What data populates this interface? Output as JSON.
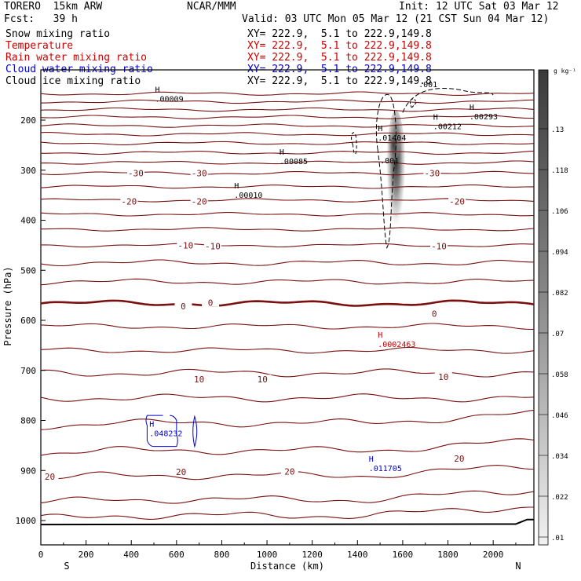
{
  "header": {
    "model": "TORERO  15km ARW",
    "org": "NCAR/MMM",
    "init": "Init: 12 UTC Sat 03 Mar 12",
    "fcst": "Fcst:   39 h",
    "valid": "Valid: 03 UTC Mon 05 Mar 12 (21 CST Sun 04 Mar 12)",
    "fields": [
      {
        "name": "Snow mixing ratio",
        "color": "#000000",
        "xy": "XY= 222.9,  5.1 to 222.9,149.8"
      },
      {
        "name": "Temperature",
        "color": "#cc0000",
        "xy": "XY= 222.9,  5.1 to 222.9,149.8"
      },
      {
        "name": "Rain water mixing ratio",
        "color": "#cc0000",
        "xy": "XY= 222.9,  5.1 to 222.9,149.8"
      },
      {
        "name": "Cloud water mixing ratio",
        "color": "#0000cc",
        "xy": "XY= 222.9,  5.1 to 222.9,149.8"
      },
      {
        "name": "Cloud ice mixing ratio",
        "color": "#000000",
        "xy": "XY= 222.9,  5.1 to 222.9,149.8"
      }
    ]
  },
  "chart_data": {
    "type": "cross-section",
    "xlabel": "Distance (km)",
    "ylabel": "Pressure (hPa)",
    "xlim": [
      0,
      2180
    ],
    "ylim": [
      1050,
      130
    ],
    "xticks": [
      0,
      200,
      400,
      600,
      800,
      1000,
      1200,
      1400,
      1600,
      1800,
      2000
    ],
    "yticks": [
      200,
      300,
      400,
      500,
      600,
      700,
      800,
      900,
      1000
    ],
    "endpoints": {
      "left": "S",
      "right": "N"
    },
    "temperature_isotherms": [
      {
        "p": 147
      },
      {
        "p": 163
      },
      {
        "p": 179
      },
      {
        "p": 194
      },
      {
        "p": 211
      },
      {
        "p": 228
      },
      {
        "p": 246
      },
      {
        "p": 265
      },
      {
        "p": 285
      },
      {
        "p": 306,
        "label": "-30"
      },
      {
        "p": 333
      },
      {
        "p": 360,
        "label": "-20"
      },
      {
        "p": 388
      },
      {
        "p": 418
      },
      {
        "p": 450,
        "label": "-10"
      },
      {
        "p": 485
      },
      {
        "p": 523
      },
      {
        "p": 566,
        "label": "0",
        "freezing": true
      },
      {
        "p": 612
      },
      {
        "p": 660
      },
      {
        "p": 705,
        "label": "10"
      },
      {
        "p": 755
      },
      {
        "p": 805
      },
      {
        "p": 860,
        "label": "20"
      },
      {
        "p": 910
      },
      {
        "p": 958
      },
      {
        "p": 990
      }
    ],
    "isotherm_labels": [
      {
        "x": 420,
        "p": 306,
        "text": "-30"
      },
      {
        "x": 700,
        "p": 306,
        "text": "-30"
      },
      {
        "x": 1730,
        "p": 306,
        "text": "-30"
      },
      {
        "x": 390,
        "p": 362,
        "text": "-20"
      },
      {
        "x": 700,
        "p": 362,
        "text": "-20"
      },
      {
        "x": 1840,
        "p": 362,
        "text": "-20"
      },
      {
        "x": 640,
        "p": 450,
        "text": "-10"
      },
      {
        "x": 760,
        "p": 452,
        "text": "-10"
      },
      {
        "x": 1760,
        "p": 452,
        "text": "-10"
      },
      {
        "x": 630,
        "p": 572,
        "text": "0"
      },
      {
        "x": 750,
        "p": 565,
        "text": "0"
      },
      {
        "x": 1740,
        "p": 587,
        "text": "0"
      },
      {
        "x": 700,
        "p": 718,
        "text": "10"
      },
      {
        "x": 980,
        "p": 718,
        "text": "10"
      },
      {
        "x": 1780,
        "p": 713,
        "text": "10"
      },
      {
        "x": 40,
        "p": 912,
        "text": "20"
      },
      {
        "x": 620,
        "p": 903,
        "text": "20"
      },
      {
        "x": 1100,
        "p": 902,
        "text": "20"
      },
      {
        "x": 1850,
        "p": 876,
        "text": "20"
      }
    ],
    "maxima": [
      {
        "x": 505,
        "p": 160,
        "text": ".00009",
        "color": "#000000"
      },
      {
        "x": 1055,
        "p": 285,
        "text": ".00085",
        "color": "#000000"
      },
      {
        "x": 855,
        "p": 352,
        "text": ".00010",
        "color": "#000000"
      },
      {
        "x": 1490,
        "p": 238,
        "text": ".01404",
        "color": "#000000"
      },
      {
        "x": 1735,
        "p": 215,
        "text": ".00212",
        "color": "#000000"
      },
      {
        "x": 1895,
        "p": 195,
        "text": ".00293",
        "color": "#000000"
      },
      {
        "x": 1490,
        "p": 650,
        "text": ".0002463",
        "color": "#cc0000"
      },
      {
        "x": 480,
        "p": 828,
        "text": ".048232",
        "color": "#0000cc"
      },
      {
        "x": 1450,
        "p": 898,
        "text": ".011705",
        "color": "#0000cc"
      }
    ],
    "contour_labels": [
      {
        "x": 1500,
        "p": 286,
        "text": ".001"
      },
      {
        "x": 1670,
        "p": 134,
        "text": ".001"
      }
    ],
    "snow_shading": {
      "x_center": 1570,
      "p_top": 230,
      "p_bottom": 510,
      "p_max": 320,
      "max_value": 0.13
    },
    "colorbar": {
      "units": "g kg⁻¹",
      "ticks": [
        ".13",
        ".118",
        ".106",
        ".094",
        ".082",
        ".07",
        ".058",
        ".046",
        ".034",
        ".022",
        ".01"
      ]
    }
  }
}
